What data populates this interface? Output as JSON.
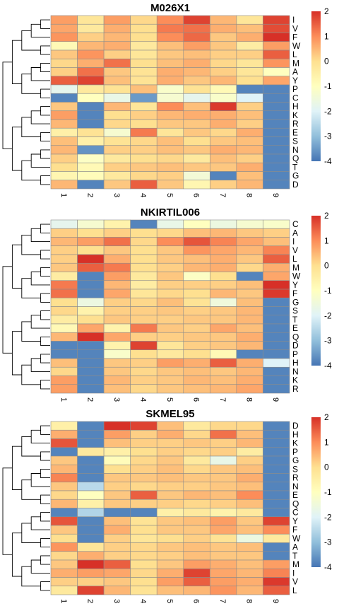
{
  "palette": [
    "#4575b4",
    "#91bfdb",
    "#e0f3f8",
    "#ffffbf",
    "#fee090",
    "#fc8d59",
    "#d73027"
  ],
  "colorbar_ticks": [
    2,
    1,
    0,
    -1,
    -2,
    -3,
    -4
  ],
  "chart_data": [
    {
      "type": "heatmap",
      "title": "M026X1",
      "columns": [
        "1",
        "2",
        "3",
        "4",
        "5",
        "6",
        "7",
        "8",
        "9"
      ],
      "rows": [
        "I",
        "V",
        "F",
        "W",
        "L",
        "M",
        "A",
        "Y",
        "P",
        "C",
        "H",
        "K",
        "R",
        "E",
        "S",
        "N",
        "Q",
        "T",
        "G",
        "D"
      ],
      "vmin": -4,
      "vmax": 2,
      "values": [
        [
          0.8,
          -0.2,
          0.8,
          0.1,
          1.0,
          1.8,
          0.5,
          -0.2,
          1.8
        ],
        [
          0.7,
          -0.3,
          0.6,
          0.0,
          1.2,
          1.3,
          0.6,
          0.4,
          1.7
        ],
        [
          0.9,
          0.2,
          0.5,
          0.0,
          1.0,
          1.4,
          0.3,
          0.6,
          2.0
        ],
        [
          -0.8,
          0.5,
          0.6,
          -0.3,
          0.4,
          0.8,
          0.3,
          -0.4,
          0.8
        ],
        [
          0.3,
          0.9,
          0.2,
          -0.2,
          0.3,
          0.4,
          0.2,
          0.2,
          1.5
        ],
        [
          0.1,
          0.6,
          1.3,
          0.0,
          0.4,
          0.6,
          0.1,
          -0.2,
          0.9
        ],
        [
          0.2,
          1.3,
          0.3,
          -0.1,
          0.6,
          0.5,
          0.2,
          -0.2,
          -1.0
        ],
        [
          1.5,
          1.8,
          0.4,
          -0.1,
          0.6,
          0.3,
          0.5,
          0.0,
          0.7
        ],
        [
          -1.8,
          -0.3,
          -0.1,
          0.4,
          -1.2,
          -0.1,
          -0.8,
          -3.8,
          -3.8
        ],
        [
          -3.8,
          -1.0,
          -1.7,
          -3.5,
          -1.3,
          -1.8,
          -1.2,
          -2.0,
          -3.8
        ],
        [
          0.3,
          -3.8,
          0.5,
          -0.2,
          1.0,
          0.4,
          1.9,
          0.2,
          -3.8
        ],
        [
          0.8,
          -3.8,
          0.0,
          0.2,
          0.5,
          0.6,
          0.6,
          0.4,
          -3.8
        ],
        [
          0.5,
          -3.8,
          0.1,
          0.0,
          0.3,
          0.3,
          0.6,
          0.2,
          -3.8
        ],
        [
          -0.5,
          -0.1,
          -1.3,
          1.2,
          -0.2,
          0.3,
          0.1,
          0.6,
          -3.8
        ],
        [
          0.4,
          -0.5,
          -0.1,
          0.1,
          0.4,
          0.0,
          0.3,
          0.4,
          -3.8
        ],
        [
          0.5,
          -3.6,
          0.2,
          0.2,
          0.4,
          0.3,
          0.6,
          0.5,
          -3.8
        ],
        [
          0.2,
          -1.1,
          -0.3,
          0.0,
          0.1,
          -0.3,
          0.4,
          0.2,
          -3.8
        ],
        [
          0.0,
          -0.8,
          0.2,
          0.3,
          0.4,
          0.3,
          0.3,
          0.6,
          -3.8
        ],
        [
          -0.7,
          -0.9,
          -0.3,
          0.1,
          0.2,
          -1.4,
          -3.8,
          0.4,
          -3.8
        ],
        [
          0.5,
          -3.8,
          0.3,
          1.5,
          0.3,
          -0.7,
          0.2,
          0.5,
          -3.8
        ]
      ]
    },
    {
      "type": "heatmap",
      "title": "NKIRTIL006",
      "columns": [
        "1",
        "2",
        "3",
        "4",
        "5",
        "6",
        "7",
        "8",
        "9"
      ],
      "rows": [
        "C",
        "A",
        "I",
        "V",
        "L",
        "M",
        "W",
        "Y",
        "F",
        "G",
        "S",
        "T",
        "E",
        "Q",
        "D",
        "P",
        "H",
        "N",
        "K",
        "R"
      ],
      "vmin": -4,
      "vmax": 2,
      "values": [
        [
          -1.8,
          -1.3,
          -0.6,
          -3.8,
          -1.7,
          -1.0,
          -1.6,
          -1.3,
          -1.2
        ],
        [
          0.2,
          0.0,
          0.2,
          0.0,
          0.1,
          0.4,
          0.5,
          0.3,
          0.2
        ],
        [
          0.5,
          0.8,
          1.3,
          0.1,
          1.0,
          1.6,
          1.1,
          0.7,
          0.4
        ],
        [
          0.2,
          0.0,
          0.3,
          0.0,
          0.3,
          0.9,
          0.7,
          0.5,
          1.1
        ],
        [
          0.2,
          2.0,
          0.6,
          0.0,
          0.3,
          0.4,
          0.6,
          0.3,
          1.5
        ],
        [
          0.3,
          1.5,
          1.2,
          0.0,
          0.2,
          0.5,
          0.6,
          0.1,
          0.6
        ],
        [
          -0.4,
          -3.8,
          0.8,
          -0.3,
          0.3,
          -1.1,
          0.0,
          -3.8,
          0.7
        ],
        [
          1.2,
          -3.8,
          0.5,
          -0.4,
          0.2,
          0.2,
          0.2,
          0.4,
          2.0
        ],
        [
          1.3,
          -3.8,
          0.7,
          -0.2,
          0.1,
          0.0,
          0.5,
          0.3,
          1.9
        ],
        [
          0.0,
          -1.6,
          0.2,
          0.1,
          0.4,
          -0.1,
          -1.5,
          0.4,
          -3.8
        ],
        [
          0.1,
          -0.6,
          0.2,
          0.2,
          0.3,
          0.2,
          0.3,
          0.5,
          -3.8
        ],
        [
          -0.4,
          0.0,
          0.3,
          0.2,
          0.2,
          0.3,
          0.3,
          0.5,
          -3.8
        ],
        [
          -0.8,
          0.7,
          -0.6,
          1.2,
          0.3,
          0.2,
          0.7,
          0.4,
          -3.8
        ],
        [
          0.5,
          2.0,
          0.7,
          0.2,
          0.2,
          0.3,
          0.3,
          0.6,
          -3.8
        ],
        [
          -3.8,
          -3.8,
          -0.6,
          1.8,
          -0.2,
          0.2,
          0.3,
          0.5,
          -3.8
        ],
        [
          -3.8,
          -3.8,
          -1.2,
          0.0,
          -0.3,
          0.0,
          -0.8,
          -3.8,
          -3.8
        ],
        [
          0.4,
          -3.8,
          0.3,
          0.2,
          0.8,
          0.6,
          1.5,
          0.6,
          -2.0
        ],
        [
          0.1,
          -3.8,
          0.3,
          0.1,
          0.3,
          0.4,
          0.3,
          0.5,
          -3.8
        ],
        [
          0.8,
          -3.8,
          0.5,
          0.2,
          0.3,
          0.5,
          0.4,
          0.6,
          -3.8
        ],
        [
          0.8,
          -3.8,
          0.4,
          0.1,
          0.3,
          0.4,
          0.5,
          0.7,
          -3.8
        ]
      ]
    },
    {
      "type": "heatmap",
      "title": "SKMEL95",
      "columns": [
        "1",
        "2",
        "3",
        "4",
        "5",
        "6",
        "7",
        "8",
        "9"
      ],
      "rows": [
        "D",
        "H",
        "K",
        "P",
        "G",
        "S",
        "R",
        "N",
        "E",
        "Q",
        "C",
        "Y",
        "F",
        "W",
        "A",
        "T",
        "M",
        "I",
        "V",
        "L"
      ],
      "vmin": -4,
      "vmax": 2,
      "values": [
        [
          -0.5,
          -3.8,
          2.0,
          1.8,
          0.4,
          -0.3,
          0.1,
          0.1,
          -3.8
        ],
        [
          0.6,
          -3.8,
          0.8,
          0.2,
          0.6,
          0.1,
          1.3,
          0.4,
          -3.8
        ],
        [
          1.6,
          -3.8,
          0.4,
          0.2,
          0.2,
          0.3,
          0.2,
          0.5,
          -3.8
        ],
        [
          -3.8,
          -0.3,
          -0.5,
          0.0,
          0.2,
          0.1,
          0.2,
          -0.4,
          -3.8
        ],
        [
          0.3,
          -3.8,
          -0.9,
          0.1,
          0.3,
          -0.3,
          -1.7,
          0.2,
          -3.8
        ],
        [
          0.5,
          -3.8,
          0.0,
          0.2,
          0.4,
          0.1,
          0.3,
          0.4,
          -3.8
        ],
        [
          1.1,
          -3.8,
          0.3,
          0.3,
          0.4,
          0.3,
          0.3,
          0.6,
          -3.8
        ],
        [
          0.3,
          -2.5,
          0.2,
          0.1,
          0.2,
          0.2,
          0.3,
          0.4,
          -3.8
        ],
        [
          0.1,
          -1.0,
          0.3,
          1.5,
          0.3,
          0.5,
          0.4,
          1.0,
          -3.8
        ],
        [
          0.5,
          -0.5,
          0.3,
          0.2,
          0.2,
          0.1,
          0.2,
          0.4,
          -3.8
        ],
        [
          -3.8,
          -2.6,
          -3.8,
          -3.8,
          -0.5,
          -0.3,
          -0.6,
          -0.3,
          -3.8
        ],
        [
          1.6,
          -3.8,
          0.4,
          -0.1,
          0.3,
          0.4,
          0.8,
          0.3,
          1.8
        ],
        [
          0.3,
          -3.8,
          0.6,
          0.0,
          0.3,
          0.3,
          0.7,
          0.4,
          1.0
        ],
        [
          0.0,
          -3.8,
          0.2,
          -0.2,
          0.0,
          0.2,
          -0.1,
          -1.6,
          -0.3
        ],
        [
          0.9,
          -0.2,
          0.2,
          0.1,
          0.3,
          0.4,
          0.3,
          0.4,
          -3.8
        ],
        [
          0.1,
          0.6,
          0.2,
          0.1,
          0.2,
          0.4,
          0.3,
          0.3,
          -3.8
        ],
        [
          0.3,
          2.0,
          1.5,
          0.0,
          0.3,
          0.8,
          0.6,
          0.4,
          0.8
        ],
        [
          0.6,
          0.8,
          0.7,
          0.1,
          0.6,
          1.8,
          0.7,
          0.5,
          1.1
        ],
        [
          0.2,
          0.2,
          0.3,
          0.0,
          0.8,
          1.5,
          0.8,
          0.6,
          1.9
        ],
        [
          -0.3,
          1.8,
          0.5,
          -0.1,
          0.4,
          0.5,
          0.9,
          0.5,
          1.5
        ]
      ]
    }
  ]
}
